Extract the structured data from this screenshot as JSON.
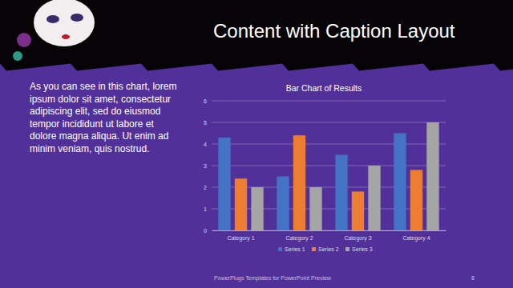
{
  "slide": {
    "title": "Content with Caption Layout",
    "caption": [
      "As you can see in this chart, lorem",
      "ipsum dolor sit amet, consectetur",
      "adipiscing elit, sed do eiusmod",
      "tempor incididunt ut labore et",
      "dolore magna aliqua. Ut enim ad",
      "minim veniam, quis nostrud."
    ],
    "footer": "PowerPlugs Templates for PowerPoint Preview",
    "page": 8
  },
  "chart_data": {
    "type": "bar",
    "title": "Bar Chart of Results",
    "categories": [
      "Category 1",
      "Category 2",
      "Category 3",
      "Category 4"
    ],
    "series": [
      {
        "name": "Series 1",
        "color": "#4472c4",
        "values": [
          4.3,
          2.5,
          3.5,
          4.5
        ]
      },
      {
        "name": "Series 2",
        "color": "#ed7d31",
        "values": [
          2.4,
          4.4,
          1.8,
          2.8
        ]
      },
      {
        "name": "Series 3",
        "color": "#a5a5a5",
        "values": [
          2,
          2,
          3,
          5
        ]
      }
    ],
    "ylim": [
      0,
      6
    ],
    "yticks": [
      0,
      1,
      2,
      3,
      4,
      5,
      6
    ],
    "grid": true,
    "legend": "bottom"
  }
}
